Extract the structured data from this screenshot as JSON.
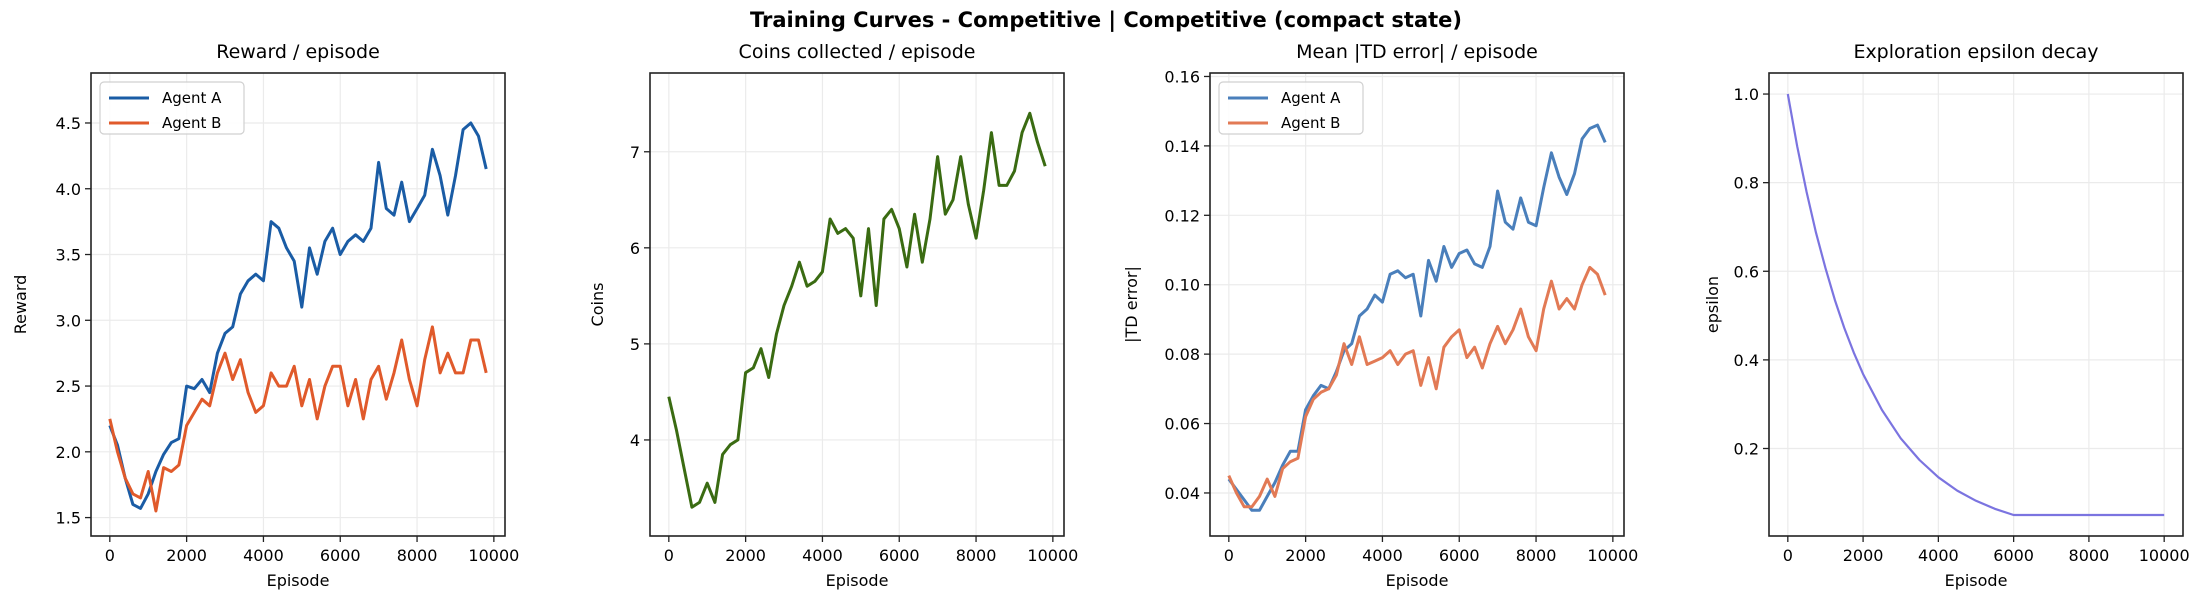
{
  "suptitle": "Training Curves - Competitive | Competitive (compact state)",
  "chart_data": [
    {
      "type": "line",
      "title": "Reward / episode",
      "xlabel": "Episode",
      "ylabel": "Reward",
      "xlim": [
        -490,
        10290
      ],
      "ylim": [
        1.36,
        4.88
      ],
      "xticks": [
        0,
        2000,
        4000,
        6000,
        8000,
        10000
      ],
      "xtick_labels": [
        "0",
        "2000",
        "4000",
        "6000",
        "8000",
        "10000"
      ],
      "yticks": [
        1.5,
        2.0,
        2.5,
        3.0,
        3.5,
        4.0,
        4.5
      ],
      "ytick_labels": [
        "1.5",
        "2.0",
        "2.5",
        "3.0",
        "3.5",
        "4.0",
        "4.5"
      ],
      "grid": true,
      "legend": "upper-left",
      "x": [
        0,
        200,
        400,
        600,
        800,
        1000,
        1200,
        1400,
        1600,
        1800,
        2000,
        2200,
        2400,
        2600,
        2800,
        3000,
        3200,
        3400,
        3600,
        3800,
        4000,
        4200,
        4400,
        4600,
        4800,
        5000,
        5200,
        5400,
        5600,
        5800,
        6000,
        6200,
        6400,
        6600,
        6800,
        7000,
        7200,
        7400,
        7600,
        7800,
        8000,
        8200,
        8400,
        8600,
        8800,
        9000,
        9200,
        9400,
        9600,
        9800
      ],
      "series": [
        {
          "name": "Agent A",
          "color": "#1a5ca5",
          "values": [
            2.2,
            2.05,
            1.8,
            1.6,
            1.57,
            1.68,
            1.85,
            1.98,
            2.07,
            2.1,
            2.5,
            2.48,
            2.55,
            2.45,
            2.75,
            2.9,
            2.95,
            3.2,
            3.3,
            3.35,
            3.3,
            3.75,
            3.7,
            3.55,
            3.45,
            3.1,
            3.55,
            3.35,
            3.6,
            3.7,
            3.5,
            3.6,
            3.65,
            3.6,
            3.7,
            4.2,
            3.85,
            3.8,
            4.05,
            3.75,
            3.85,
            3.95,
            4.3,
            4.1,
            3.8,
            4.1,
            4.45,
            4.5,
            4.4,
            4.15
          ]
        },
        {
          "name": "Agent B",
          "color": "#e05a2b",
          "values": [
            2.25,
            2.0,
            1.8,
            1.68,
            1.65,
            1.85,
            1.55,
            1.88,
            1.85,
            1.9,
            2.2,
            2.3,
            2.4,
            2.35,
            2.6,
            2.75,
            2.55,
            2.7,
            2.45,
            2.3,
            2.35,
            2.6,
            2.5,
            2.5,
            2.65,
            2.35,
            2.55,
            2.25,
            2.5,
            2.65,
            2.65,
            2.35,
            2.55,
            2.25,
            2.55,
            2.65,
            2.4,
            2.6,
            2.85,
            2.55,
            2.35,
            2.7,
            2.95,
            2.6,
            2.75,
            2.6,
            2.6,
            2.85,
            2.85,
            2.6
          ]
        }
      ]
    },
    {
      "type": "line",
      "title": "Coins collected / episode",
      "xlabel": "Episode",
      "ylabel": "Coins",
      "xlim": [
        -490,
        10290
      ],
      "ylim": [
        3.0,
        7.82
      ],
      "xticks": [
        0,
        2000,
        4000,
        6000,
        8000,
        10000
      ],
      "xtick_labels": [
        "0",
        "2000",
        "4000",
        "6000",
        "8000",
        "10000"
      ],
      "yticks": [
        4,
        5,
        6,
        7
      ],
      "ytick_labels": [
        "4",
        "5",
        "6",
        "7"
      ],
      "grid": true,
      "x": [
        0,
        200,
        400,
        600,
        800,
        1000,
        1200,
        1400,
        1600,
        1800,
        2000,
        2200,
        2400,
        2600,
        2800,
        3000,
        3200,
        3400,
        3600,
        3800,
        4000,
        4200,
        4400,
        4600,
        4800,
        5000,
        5200,
        5400,
        5600,
        5800,
        6000,
        6200,
        6400,
        6600,
        6800,
        7000,
        7200,
        7400,
        7600,
        7800,
        8000,
        8200,
        8400,
        8600,
        8800,
        9000,
        9200,
        9400,
        9600,
        9800
      ],
      "series": [
        {
          "color": "#3a6b12",
          "values": [
            4.45,
            4.1,
            3.7,
            3.3,
            3.35,
            3.55,
            3.35,
            3.85,
            3.95,
            4.0,
            4.7,
            4.75,
            4.95,
            4.65,
            5.1,
            5.4,
            5.6,
            5.85,
            5.6,
            5.65,
            5.75,
            6.3,
            6.15,
            6.2,
            6.1,
            5.5,
            6.2,
            5.4,
            6.3,
            6.4,
            6.2,
            5.8,
            6.35,
            5.85,
            6.3,
            6.95,
            6.35,
            6.5,
            6.95,
            6.45,
            6.1,
            6.6,
            7.2,
            6.65,
            6.65,
            6.8,
            7.2,
            7.4,
            7.1,
            6.85
          ]
        }
      ]
    },
    {
      "type": "line",
      "title": "Mean |TD error| / episode",
      "xlabel": "Episode",
      "ylabel": "|TD error|",
      "xlim": [
        -490,
        10290
      ],
      "ylim": [
        0.0276,
        0.161
      ],
      "xticks": [
        0,
        2000,
        4000,
        6000,
        8000,
        10000
      ],
      "xtick_labels": [
        "0",
        "2000",
        "4000",
        "6000",
        "8000",
        "10000"
      ],
      "yticks": [
        0.04,
        0.06,
        0.08,
        0.1,
        0.12,
        0.14,
        0.16
      ],
      "ytick_labels": [
        "0.04",
        "0.06",
        "0.08",
        "0.10",
        "0.12",
        "0.14",
        "0.16"
      ],
      "grid": true,
      "legend": "upper-left",
      "x": [
        0,
        200,
        400,
        600,
        800,
        1000,
        1200,
        1400,
        1600,
        1800,
        2000,
        2200,
        2400,
        2600,
        2800,
        3000,
        3200,
        3400,
        3600,
        3800,
        4000,
        4200,
        4400,
        4600,
        4800,
        5000,
        5200,
        5400,
        5600,
        5800,
        6000,
        6200,
        6400,
        6600,
        6800,
        7000,
        7200,
        7400,
        7600,
        7800,
        8000,
        8200,
        8400,
        8600,
        8800,
        9000,
        9200,
        9400,
        9600,
        9800
      ],
      "series": [
        {
          "name": "Agent A",
          "color": "#4a7fbb",
          "values": [
            0.044,
            0.041,
            0.038,
            0.035,
            0.035,
            0.039,
            0.043,
            0.048,
            0.052,
            0.052,
            0.064,
            0.068,
            0.071,
            0.07,
            0.075,
            0.081,
            0.083,
            0.091,
            0.093,
            0.097,
            0.095,
            0.103,
            0.104,
            0.102,
            0.103,
            0.091,
            0.107,
            0.101,
            0.111,
            0.105,
            0.109,
            0.11,
            0.106,
            0.105,
            0.111,
            0.127,
            0.118,
            0.116,
            0.125,
            0.118,
            0.117,
            0.128,
            0.138,
            0.131,
            0.126,
            0.132,
            0.142,
            0.145,
            0.146,
            0.141
          ]
        },
        {
          "name": "Agent B",
          "color": "#e27a55",
          "values": [
            0.045,
            0.04,
            0.036,
            0.036,
            0.039,
            0.044,
            0.039,
            0.047,
            0.049,
            0.05,
            0.062,
            0.067,
            0.069,
            0.07,
            0.074,
            0.083,
            0.077,
            0.085,
            0.077,
            0.078,
            0.079,
            0.081,
            0.077,
            0.08,
            0.081,
            0.071,
            0.079,
            0.07,
            0.082,
            0.085,
            0.087,
            0.079,
            0.082,
            0.076,
            0.083,
            0.088,
            0.083,
            0.087,
            0.093,
            0.085,
            0.081,
            0.093,
            0.101,
            0.093,
            0.096,
            0.093,
            0.1,
            0.105,
            0.103,
            0.097
          ]
        }
      ]
    },
    {
      "type": "line",
      "title": "Exploration epsilon decay",
      "xlabel": "Episode",
      "ylabel": "epsilon",
      "xlim": [
        -500,
        10500
      ],
      "ylim": [
        0.0025,
        1.0475
      ],
      "xticks": [
        0,
        2000,
        4000,
        6000,
        8000,
        10000
      ],
      "xtick_labels": [
        "0",
        "2000",
        "4000",
        "6000",
        "8000",
        "10000"
      ],
      "yticks": [
        0.2,
        0.4,
        0.6,
        0.8,
        1.0
      ],
      "ytick_labels": [
        "0.2",
        "0.4",
        "0.6",
        "0.8",
        "1.0"
      ],
      "grid": true,
      "x": [
        0,
        250,
        500,
        750,
        1000,
        1250,
        1500,
        1750,
        2000,
        2500,
        3000,
        3500,
        4000,
        4500,
        5000,
        5500,
        6000,
        7000,
        8000,
        9000,
        10000
      ],
      "series": [
        {
          "color": "#7b74e0",
          "values": [
            1.0,
            0.882,
            0.779,
            0.687,
            0.607,
            0.535,
            0.472,
            0.417,
            0.368,
            0.287,
            0.223,
            0.174,
            0.135,
            0.105,
            0.082,
            0.064,
            0.05,
            0.05,
            0.05,
            0.05,
            0.05
          ]
        }
      ]
    }
  ]
}
